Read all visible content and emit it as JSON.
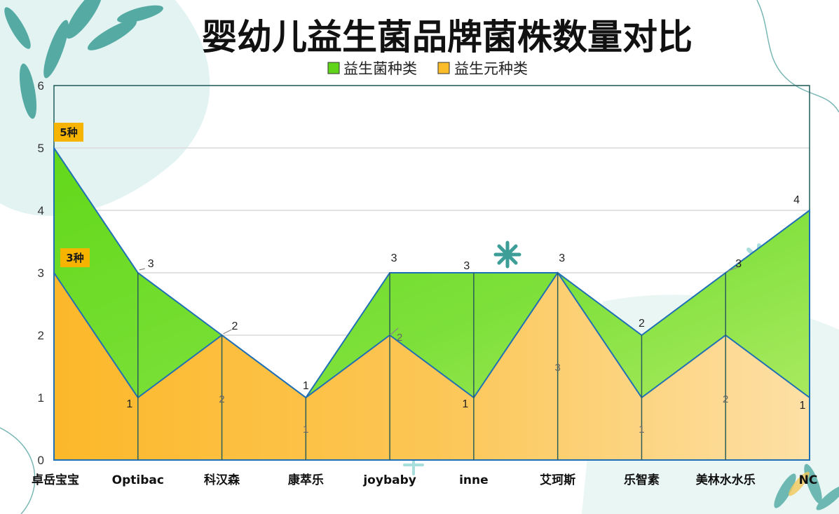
{
  "chart_data": {
    "type": "area",
    "title": "婴幼儿益生菌品牌菌株数量对比",
    "categories": [
      "卓岳宝宝",
      "Optibac",
      "科汉森",
      "康萃乐",
      "joybaby",
      "inne",
      "艾珂斯",
      "乐智素",
      "美林水水乐",
      "NC"
    ],
    "series": [
      {
        "name": "益生菌种类",
        "values": [
          5,
          3,
          2,
          1,
          3,
          3,
          3,
          2,
          3,
          4
        ],
        "color": "#5fd41a"
      },
      {
        "name": "益生元种类",
        "values": [
          3,
          1,
          2,
          1,
          2,
          1,
          3,
          1,
          2,
          1
        ],
        "color": "#fbbc2a"
      }
    ],
    "ylim": [
      0,
      6
    ],
    "yticks": [
      "0",
      "1",
      "2",
      "3",
      "4",
      "5",
      "6"
    ],
    "grid": true,
    "legend_position": "top",
    "annotations": [
      "5种",
      "3种"
    ]
  }
}
